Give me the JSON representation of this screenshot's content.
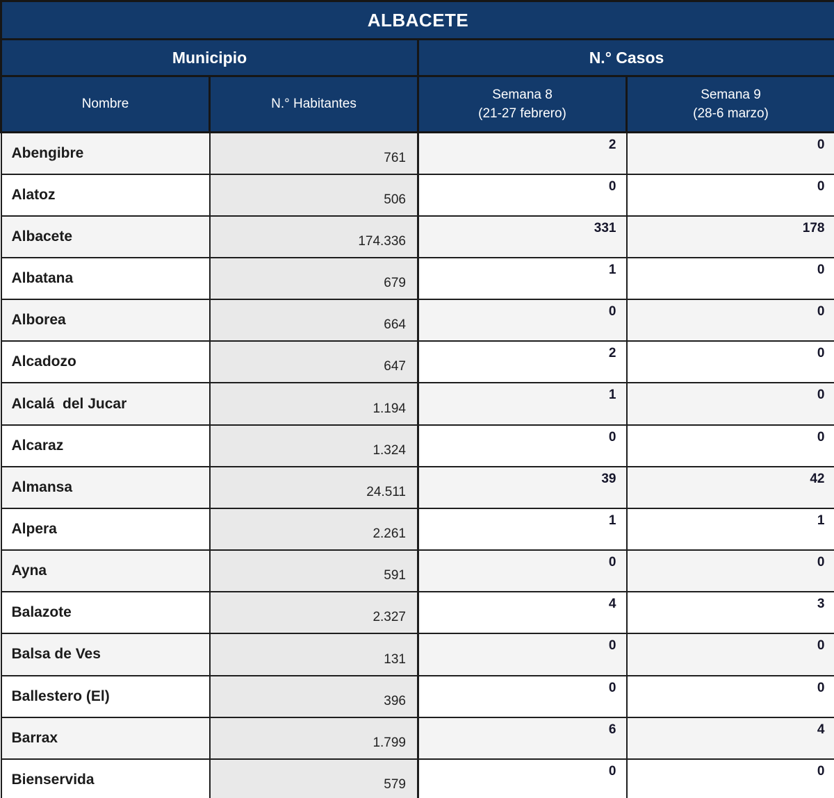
{
  "title": "ALBACETE",
  "header": {
    "municipio_group": "Municipio",
    "casos_group": "N.° Casos",
    "col_nombre": "Nombre",
    "col_habitantes": "N.° Habitantes",
    "col_semana8_line1": "Semana 8",
    "col_semana8_line2": "(21-27 febrero)",
    "col_semana9_line1": "Semana 9",
    "col_semana9_line2": "(28-6 marzo)"
  },
  "colors": {
    "header_bg": "#133a6b",
    "header_text": "#ffffff",
    "border": "#1e1e1e",
    "row_odd_bg": "#f4f4f4",
    "row_even_bg": "#ffffff",
    "habitantes_col_bg": "#e9e9e9",
    "text": "#1b1b1b"
  },
  "rows": [
    {
      "name": "Abengibre",
      "habitantes": "761",
      "semana8": "2",
      "semana9": "0"
    },
    {
      "name": "Alatoz",
      "habitantes": "506",
      "semana8": "0",
      "semana9": "0"
    },
    {
      "name": "Albacete",
      "habitantes": "174.336",
      "semana8": "331",
      "semana9": "178"
    },
    {
      "name": "Albatana",
      "habitantes": "679",
      "semana8": "1",
      "semana9": "0"
    },
    {
      "name": "Alborea",
      "habitantes": "664",
      "semana8": "0",
      "semana9": "0"
    },
    {
      "name": "Alcadozo",
      "habitantes": "647",
      "semana8": "2",
      "semana9": "0"
    },
    {
      "name": "Alcalá  del Jucar",
      "habitantes": "1.194",
      "semana8": "1",
      "semana9": "0"
    },
    {
      "name": "Alcaraz",
      "habitantes": "1.324",
      "semana8": "0",
      "semana9": "0"
    },
    {
      "name": "Almansa",
      "habitantes": "24.511",
      "semana8": "39",
      "semana9": "42"
    },
    {
      "name": "Alpera",
      "habitantes": "2.261",
      "semana8": "1",
      "semana9": "1"
    },
    {
      "name": "Ayna",
      "habitantes": "591",
      "semana8": "0",
      "semana9": "0"
    },
    {
      "name": "Balazote",
      "habitantes": "2.327",
      "semana8": "4",
      "semana9": "3"
    },
    {
      "name": "Balsa de Ves",
      "habitantes": "131",
      "semana8": "0",
      "semana9": "0"
    },
    {
      "name": "Ballestero (El)",
      "habitantes": "396",
      "semana8": "0",
      "semana9": "0"
    },
    {
      "name": "Barrax",
      "habitantes": "1.799",
      "semana8": "6",
      "semana9": "4"
    },
    {
      "name": "Bienservida",
      "habitantes": "579",
      "semana8": "0",
      "semana9": "0"
    }
  ]
}
